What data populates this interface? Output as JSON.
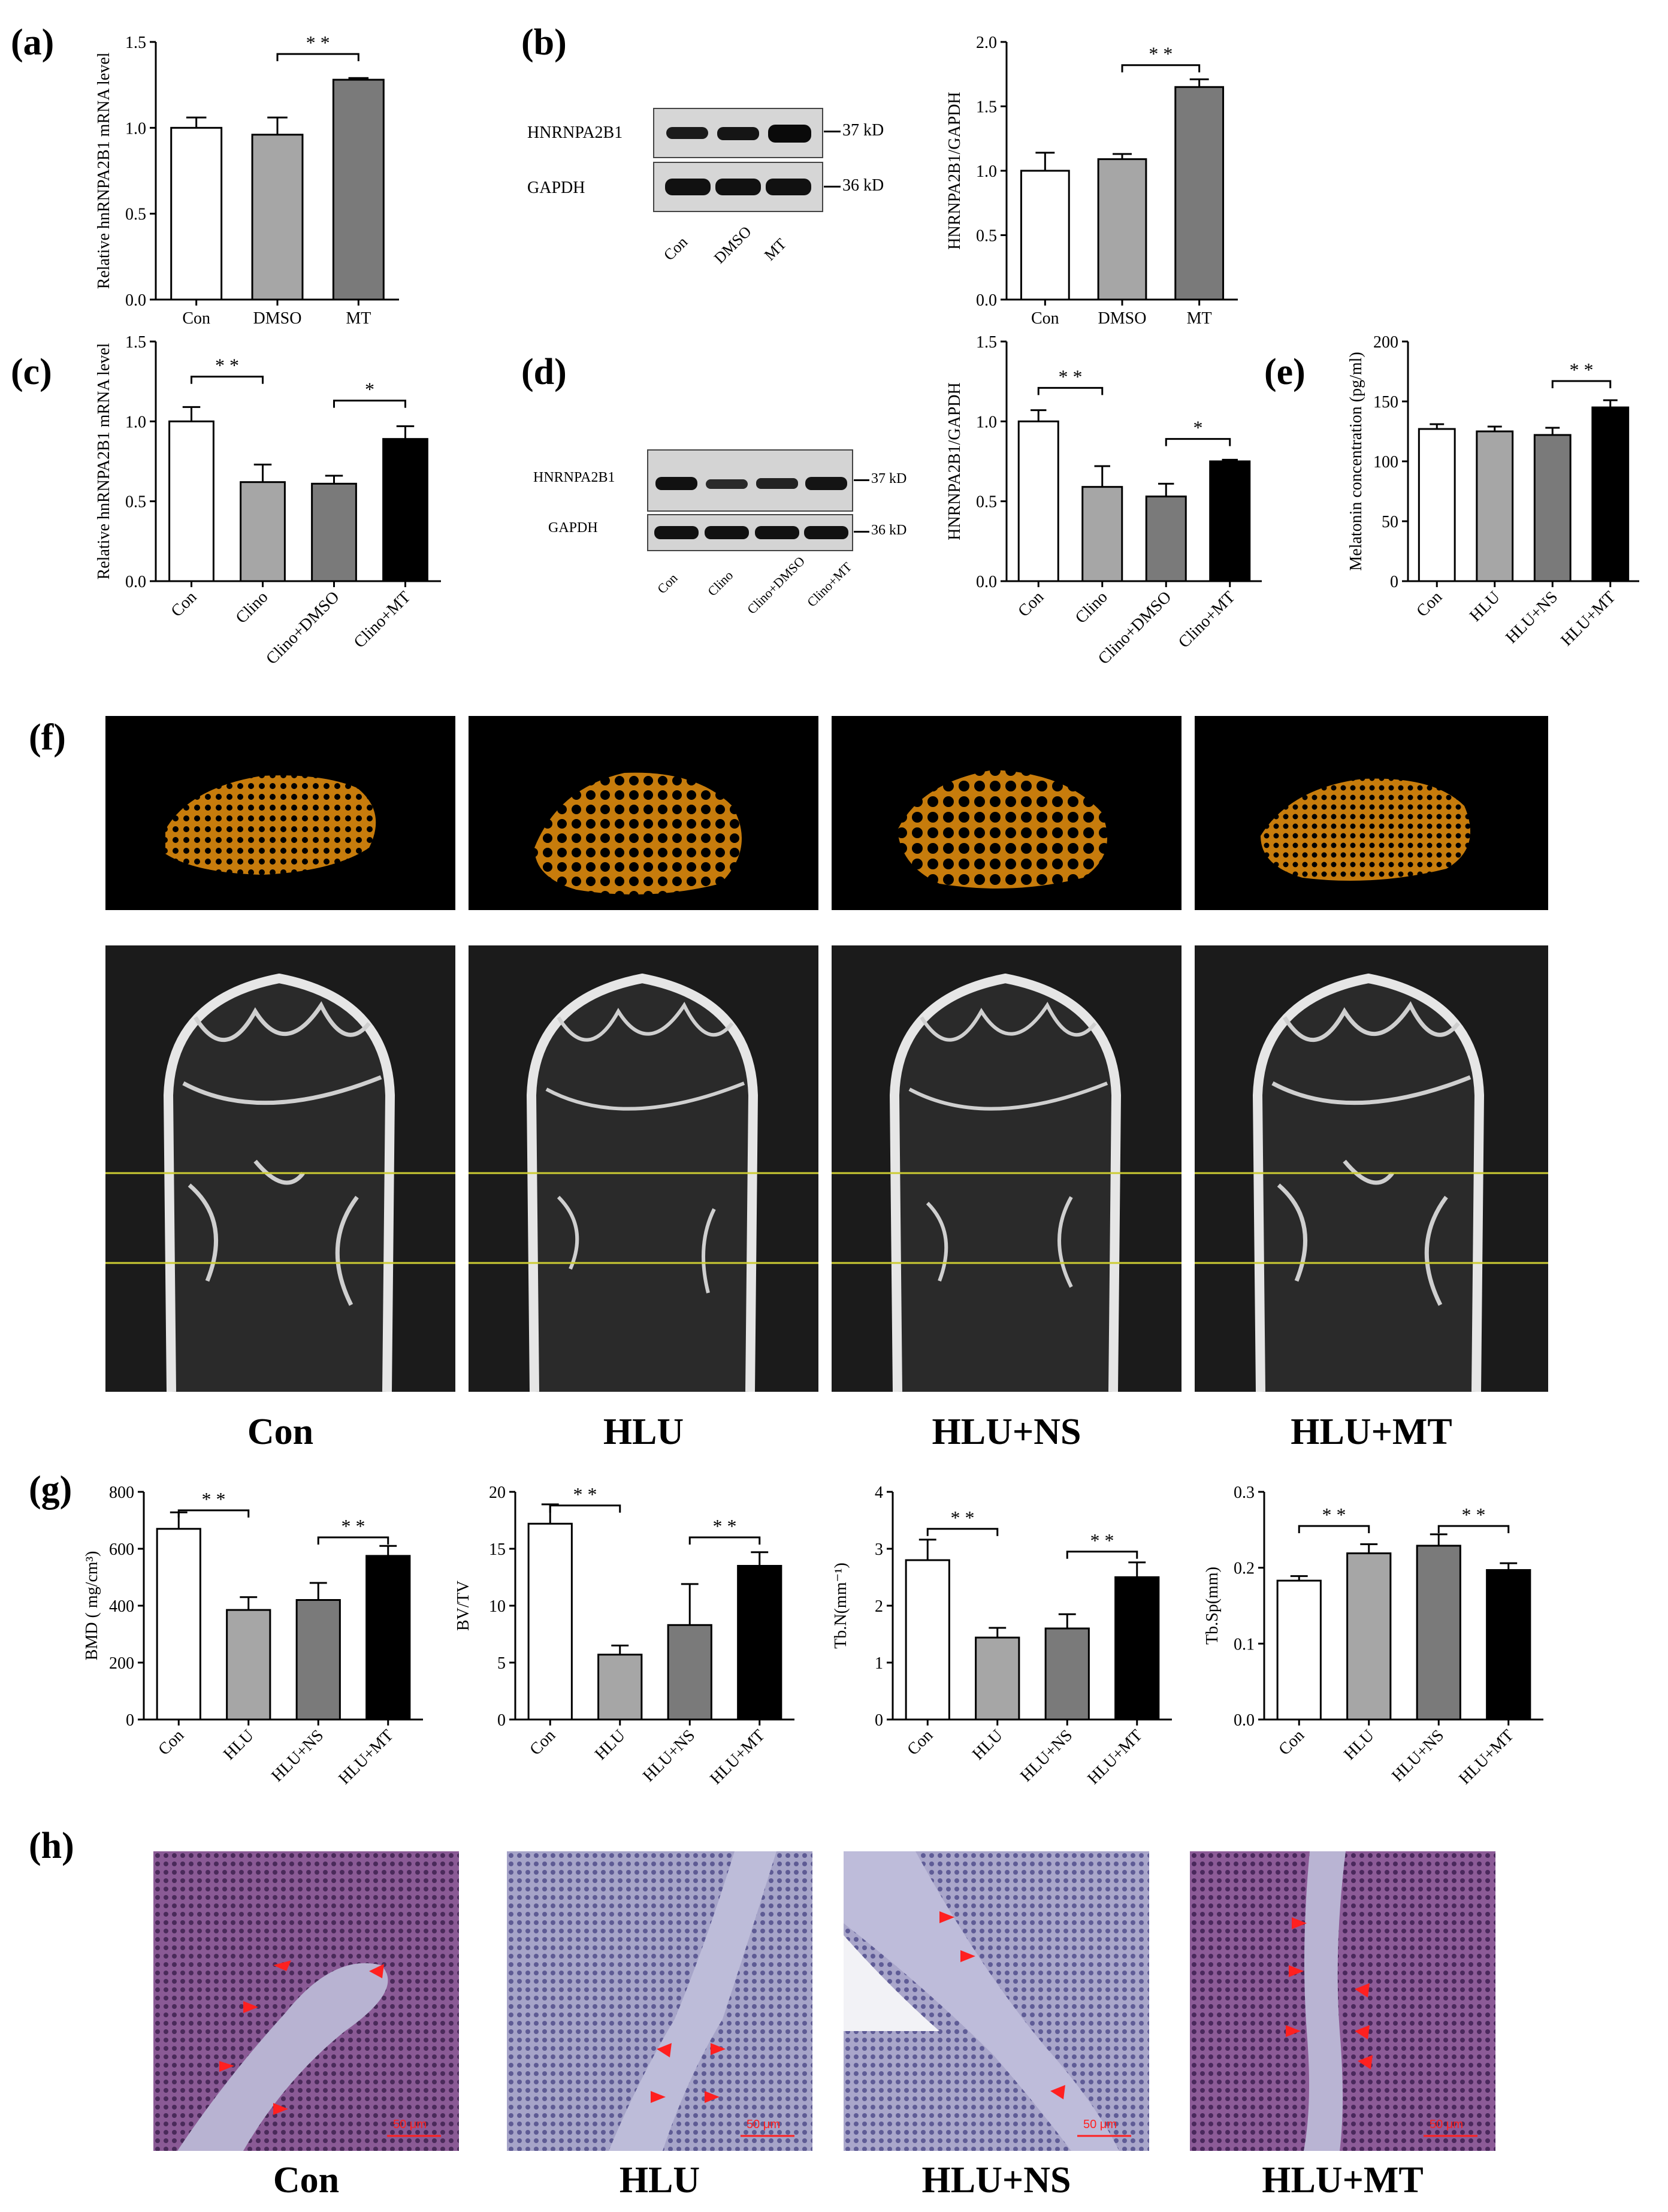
{
  "panel_labels": {
    "a": "(a)",
    "b": "(b)",
    "c": "(c)",
    "d": "(d)",
    "e": "(e)",
    "f": "(f)",
    "g": "(g)",
    "h": "(h)"
  },
  "western_b": {
    "rows": [
      "HNRNPA2B1",
      "GAPDH"
    ],
    "kd": [
      "37 kD",
      "36 kD"
    ],
    "lanes": [
      "Con",
      "DMSO",
      "MT"
    ]
  },
  "western_d": {
    "rows": [
      "HNRNPA2B1",
      "GAPDH"
    ],
    "kd": [
      "37 kD",
      "36 kD"
    ],
    "lanes": [
      "Con",
      "Clino",
      "Clino+DMSO",
      "Clino+MT"
    ]
  },
  "f_groups": [
    "Con",
    "HLU",
    "HLU+NS",
    "HLU+MT"
  ],
  "h_groups": [
    "Con",
    "HLU",
    "HLU+NS",
    "HLU+MT"
  ],
  "h_scale_label": "50 μm",
  "colors": {
    "white": "#ffffff",
    "lightgray": "#a6a6a6",
    "darkgray": "#7a7a7a",
    "black": "#000000"
  },
  "chart_data": [
    {
      "id": "a",
      "type": "bar",
      "categories": [
        "Con",
        "DMSO",
        "MT"
      ],
      "values": [
        1.0,
        0.96,
        1.28
      ],
      "errors": [
        0.06,
        0.1,
        0.01
      ],
      "fills": [
        "white",
        "lightgray",
        "darkgray"
      ],
      "ylabel": "Relative hnRNPA2B1 mRNA level",
      "ylim": [
        0,
        1.5
      ],
      "yticks": [
        0.0,
        0.5,
        1.0,
        1.5
      ],
      "tick_labels": [
        "0.0",
        "0.5",
        "1.0",
        "1.5"
      ],
      "rotate_x": false,
      "sig": [
        {
          "from": 1,
          "to": 2,
          "label": "* *",
          "at": 1.43
        }
      ]
    },
    {
      "id": "b",
      "type": "bar",
      "categories": [
        "Con",
        "DMSO",
        "MT"
      ],
      "values": [
        1.0,
        1.09,
        1.65
      ],
      "errors": [
        0.14,
        0.04,
        0.06
      ],
      "fills": [
        "white",
        "lightgray",
        "darkgray"
      ],
      "ylabel": "HNRNPA2B1/GAPDH",
      "ylim": [
        0,
        2.0
      ],
      "yticks": [
        0.0,
        0.5,
        1.0,
        1.5,
        2.0
      ],
      "tick_labels": [
        "0.0",
        "0.5",
        "1.0",
        "1.5",
        "2.0"
      ],
      "rotate_x": false,
      "sig": [
        {
          "from": 1,
          "to": 2,
          "label": "* *",
          "at": 1.82
        }
      ]
    },
    {
      "id": "c",
      "type": "bar",
      "categories": [
        "Con",
        "Clino",
        "Clino+DMSO",
        "Clino+MT"
      ],
      "values": [
        1.0,
        0.62,
        0.61,
        0.89
      ],
      "errors": [
        0.09,
        0.11,
        0.05,
        0.08
      ],
      "fills": [
        "white",
        "lightgray",
        "darkgray",
        "black"
      ],
      "ylabel": "Relative hnRNPA2B1 mRNA level",
      "ylim": [
        0,
        1.5
      ],
      "yticks": [
        0.0,
        0.5,
        1.0,
        1.5
      ],
      "tick_labels": [
        "0.0",
        "0.5",
        "1.0",
        "1.5"
      ],
      "rotate_x": true,
      "sig": [
        {
          "from": 0,
          "to": 1,
          "label": "* *",
          "at": 1.28
        },
        {
          "from": 2,
          "to": 3,
          "label": "*",
          "at": 1.13
        }
      ]
    },
    {
      "id": "d",
      "type": "bar",
      "categories": [
        "Con",
        "Clino",
        "Clino+DMSO",
        "Clino+MT"
      ],
      "values": [
        1.0,
        0.59,
        0.53,
        0.75
      ],
      "errors": [
        0.07,
        0.13,
        0.08,
        0.01
      ],
      "fills": [
        "white",
        "lightgray",
        "darkgray",
        "black"
      ],
      "ylabel": "HNRNPA2B1/GAPDH",
      "ylim": [
        0,
        1.5
      ],
      "yticks": [
        0.0,
        0.5,
        1.0,
        1.5
      ],
      "tick_labels": [
        "0.0",
        "0.5",
        "1.0",
        "1.5"
      ],
      "rotate_x": true,
      "sig": [
        {
          "from": 0,
          "to": 1,
          "label": "* *",
          "at": 1.21
        },
        {
          "from": 2,
          "to": 3,
          "label": "*",
          "at": 0.89
        }
      ]
    },
    {
      "id": "e",
      "type": "bar",
      "categories": [
        "Con",
        "HLU",
        "HLU+NS",
        "HLU+MT"
      ],
      "values": [
        127,
        125,
        122,
        145
      ],
      "errors": [
        4,
        4,
        6,
        6
      ],
      "fills": [
        "white",
        "lightgray",
        "darkgray",
        "black"
      ],
      "ylabel": "Melatonin concentration (pg/ml)",
      "ylim": [
        0,
        200
      ],
      "yticks": [
        0,
        50,
        100,
        150,
        200
      ],
      "tick_labels": [
        "0",
        "50",
        "100",
        "150",
        "200"
      ],
      "rotate_x": true,
      "sig": [
        {
          "from": 2,
          "to": 3,
          "label": "* *",
          "at": 167
        }
      ]
    },
    {
      "id": "g1",
      "type": "bar",
      "categories": [
        "Con",
        "HLU",
        "HLU+NS",
        "HLU+MT"
      ],
      "values": [
        670,
        385,
        420,
        575
      ],
      "errors": [
        58,
        45,
        60,
        35
      ],
      "fills": [
        "white",
        "lightgray",
        "darkgray",
        "black"
      ],
      "ylabel": "BMD ( mg/cm³)",
      "ylim": [
        0,
        800
      ],
      "yticks": [
        0,
        200,
        400,
        600,
        800
      ],
      "tick_labels": [
        "0",
        "200",
        "400",
        "600",
        "800"
      ],
      "rotate_x": true,
      "sig": [
        {
          "from": 0,
          "to": 1,
          "label": "* *",
          "at": 735
        },
        {
          "from": 2,
          "to": 3,
          "label": "* *",
          "at": 640
        }
      ]
    },
    {
      "id": "g2",
      "type": "bar",
      "categories": [
        "Con",
        "HLU",
        "HLU+NS",
        "HLU+MT"
      ],
      "values": [
        17.2,
        5.7,
        8.3,
        13.5
      ],
      "errors": [
        1.7,
        0.8,
        3.6,
        1.2
      ],
      "fills": [
        "white",
        "lightgray",
        "darkgray",
        "black"
      ],
      "ylabel": "BV/TV",
      "ylim": [
        0,
        20
      ],
      "yticks": [
        0,
        5,
        10,
        15,
        20
      ],
      "tick_labels": [
        "0",
        "5",
        "10",
        "15",
        "20"
      ],
      "rotate_x": true,
      "sig": [
        {
          "from": 0,
          "to": 1,
          "label": "* *",
          "at": 18.8
        },
        {
          "from": 2,
          "to": 3,
          "label": "* *",
          "at": 16.0
        }
      ]
    },
    {
      "id": "g3",
      "type": "bar",
      "categories": [
        "Con",
        "HLU",
        "HLU+NS",
        "HLU+MT"
      ],
      "values": [
        2.8,
        1.44,
        1.6,
        2.5
      ],
      "errors": [
        0.36,
        0.17,
        0.25,
        0.26
      ],
      "fills": [
        "white",
        "lightgray",
        "darkgray",
        "black"
      ],
      "ylabel": "Tb.N(mm⁻¹)",
      "ylim": [
        0,
        4
      ],
      "yticks": [
        0,
        1,
        2,
        3,
        4
      ],
      "tick_labels": [
        "0",
        "1",
        "2",
        "3",
        "4"
      ],
      "rotate_x": true,
      "sig": [
        {
          "from": 0,
          "to": 1,
          "label": "* *",
          "at": 3.35
        },
        {
          "from": 2,
          "to": 3,
          "label": "* *",
          "at": 2.95
        }
      ]
    },
    {
      "id": "g4",
      "type": "bar",
      "categories": [
        "Con",
        "HLU",
        "HLU+NS",
        "HLU+MT"
      ],
      "values": [
        0.183,
        0.219,
        0.229,
        0.197
      ],
      "errors": [
        0.006,
        0.012,
        0.015,
        0.009
      ],
      "fills": [
        "white",
        "lightgray",
        "darkgray",
        "black"
      ],
      "ylabel": "Tb.Sp(mm)",
      "ylim": [
        0,
        0.3
      ],
      "yticks": [
        0.0,
        0.1,
        0.2,
        0.3
      ],
      "tick_labels": [
        "0.0",
        "0.1",
        "0.2",
        "0.3"
      ],
      "rotate_x": true,
      "sig": [
        {
          "from": 0,
          "to": 1,
          "label": "* *",
          "at": 0.255
        },
        {
          "from": 2,
          "to": 3,
          "label": "* *",
          "at": 0.255
        }
      ]
    }
  ]
}
